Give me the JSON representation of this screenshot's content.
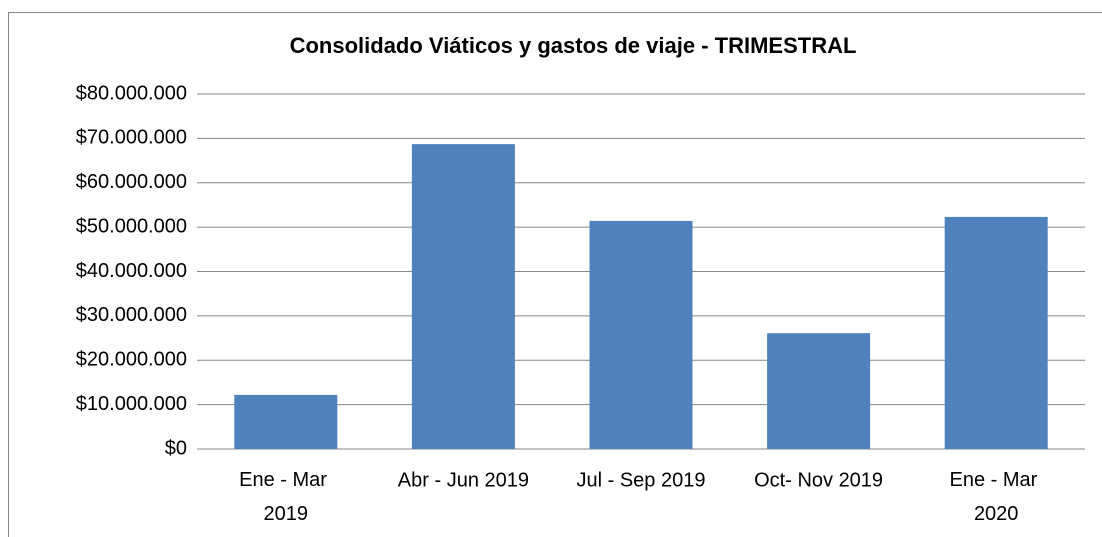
{
  "chart_data": {
    "type": "bar",
    "title": "Consolidado Viáticos y gastos de viaje  - TRIMESTRAL",
    "categories": [
      "Ene - Mar 2019",
      "Abr - Jun 2019",
      "Jul - Sep 2019",
      "Oct- Nov 2019",
      "Ene - Mar 2020"
    ],
    "values": [
      12200000,
      68700000,
      51400000,
      26100000,
      52300000
    ],
    "color": "#4f81bd",
    "ylim": [
      0,
      80000000
    ],
    "yticks": [
      {
        "value": 0,
        "label": "$0"
      },
      {
        "value": 10000000,
        "label": "$10.000.000"
      },
      {
        "value": 20000000,
        "label": "$20.000.000"
      },
      {
        "value": 30000000,
        "label": "$30.000.000"
      },
      {
        "value": 40000000,
        "label": "$40.000.000"
      },
      {
        "value": 50000000,
        "label": "$50.000.000"
      },
      {
        "value": 60000000,
        "label": "$60.000.000"
      },
      {
        "value": 70000000,
        "label": "$70.000.000"
      },
      {
        "value": 80000000,
        "label": "$80.000.000"
      }
    ],
    "grid": true
  }
}
